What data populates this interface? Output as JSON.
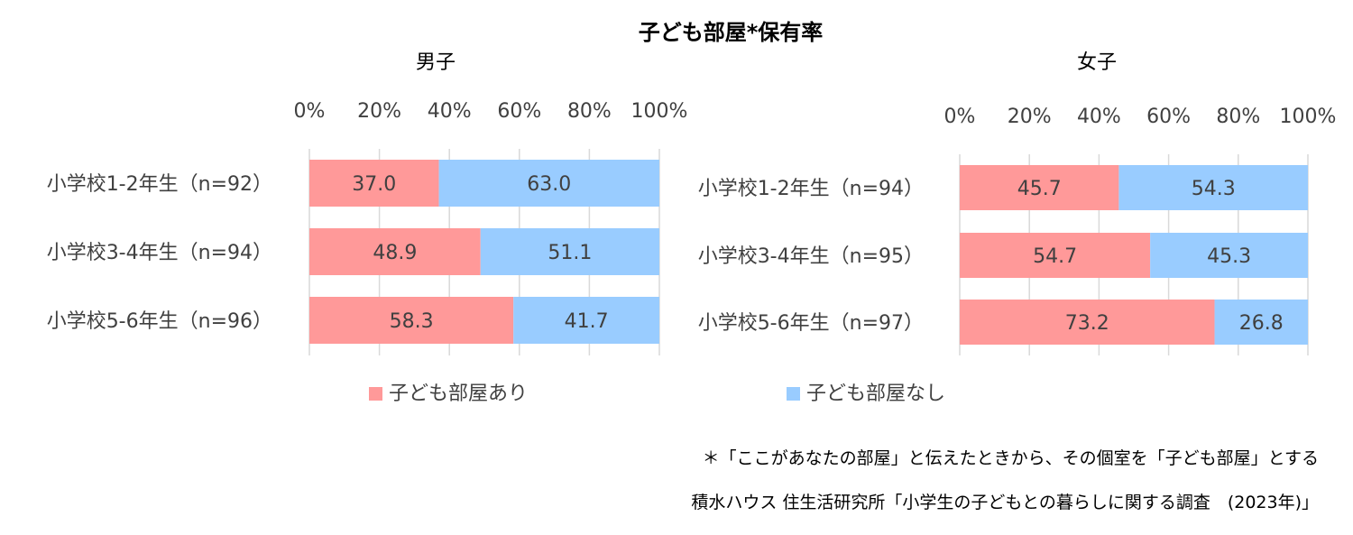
{
  "chart_data": {
    "type": "bar",
    "stacked": true,
    "orientation": "horizontal",
    "title": "子ども部屋*保有率",
    "panels": [
      {
        "title": "男子",
        "categories": [
          "小学校1-2年生（n=92）",
          "小学校3-4年生（n=94）",
          "小学校5-6年生（n=96）"
        ],
        "series": [
          {
            "name": "子ども部屋あり",
            "values": [
              37.0,
              48.9,
              58.3
            ],
            "labels": [
              "37.0",
              "48.9",
              "58.3"
            ]
          },
          {
            "name": "子ども部屋なし",
            "values": [
              63.0,
              51.1,
              41.7
            ],
            "labels": [
              "63.0",
              "51.1",
              "41.7"
            ]
          }
        ],
        "xlim": [
          0,
          100
        ],
        "xticks": [
          "0%",
          "20%",
          "40%",
          "60%",
          "80%",
          "100%"
        ]
      },
      {
        "title": "女子",
        "categories": [
          "小学校1-2年生（n=94）",
          "小学校3-4年生（n=95）",
          "小学校5-6年生（n=97）"
        ],
        "series": [
          {
            "name": "子ども部屋あり",
            "values": [
              45.7,
              54.7,
              73.2
            ],
            "labels": [
              "45.7",
              "54.7",
              "73.2"
            ]
          },
          {
            "name": "子ども部屋なし",
            "values": [
              54.3,
              45.3,
              26.8
            ],
            "labels": [
              "54.3",
              "45.3",
              "26.8"
            ]
          }
        ],
        "xlim": [
          0,
          100
        ],
        "xticks": [
          "0%",
          "20%",
          "40%",
          "60%",
          "80%",
          "100%"
        ]
      }
    ],
    "legend": [
      "子ども部屋あり",
      "子ども部屋なし"
    ],
    "legend_position": "bottom",
    "grid": true
  },
  "colors": {
    "with_room": "#FF9999",
    "without_room": "#99CCFF",
    "grid": "#D9D9D9"
  },
  "footnote": "＊「ここがあなたの部屋」と伝えたときから、その個室を「子ども部屋」とする",
  "source": "積水ハウス 住生活研究所「小学生の子どもとの暮らしに関する調査　(2023年)」"
}
